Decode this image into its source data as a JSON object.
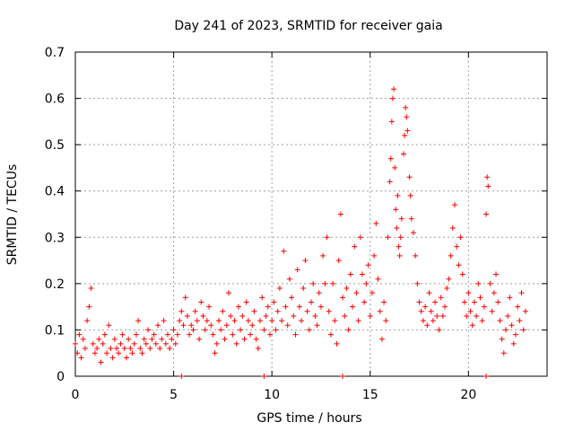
{
  "chart_data": {
    "type": "scatter",
    "title": "Day 241 of 2023, SRMTID for receiver gaia",
    "xlabel": "GPS time / hours",
    "ylabel": "SRMTID / TECUs",
    "xlim": [
      0,
      24
    ],
    "ylim": [
      0,
      0.7
    ],
    "xticks": [
      0,
      5,
      10,
      15,
      20
    ],
    "yticks": [
      0,
      0.1,
      0.2,
      0.3,
      0.4,
      0.5,
      0.6,
      0.7
    ],
    "xtick_labels": [
      "0",
      "5",
      "10",
      "15",
      "20"
    ],
    "ytick_labels": [
      "0",
      "0.1",
      "0.2",
      "0.3",
      "0.4",
      "0.5",
      "0.6",
      "0.7"
    ],
    "grid": true,
    "marker": "+",
    "series": [
      {
        "name": "SRMTID",
        "color": "#ff0000",
        "points": [
          [
            0.0,
            0.07
          ],
          [
            0.1,
            0.05
          ],
          [
            0.2,
            0.09
          ],
          [
            0.3,
            0.04
          ],
          [
            0.4,
            0.08
          ],
          [
            0.5,
            0.06
          ],
          [
            0.6,
            0.12
          ],
          [
            0.7,
            0.15
          ],
          [
            0.8,
            0.19
          ],
          [
            0.9,
            0.07
          ],
          [
            1.0,
            0.05
          ],
          [
            1.1,
            0.06
          ],
          [
            1.2,
            0.08
          ],
          [
            1.3,
            0.03
          ],
          [
            1.4,
            0.07
          ],
          [
            1.5,
            0.09
          ],
          [
            1.6,
            0.05
          ],
          [
            1.7,
            0.11
          ],
          [
            1.8,
            0.06
          ],
          [
            1.9,
            0.04
          ],
          [
            2.0,
            0.08
          ],
          [
            2.1,
            0.06
          ],
          [
            2.2,
            0.05
          ],
          [
            2.3,
            0.07
          ],
          [
            2.4,
            0.09
          ],
          [
            2.5,
            0.06
          ],
          [
            2.6,
            0.04
          ],
          [
            2.7,
            0.08
          ],
          [
            2.8,
            0.06
          ],
          [
            2.9,
            0.05
          ],
          [
            3.0,
            0.07
          ],
          [
            3.1,
            0.09
          ],
          [
            3.2,
            0.12
          ],
          [
            3.3,
            0.06
          ],
          [
            3.4,
            0.05
          ],
          [
            3.5,
            0.08
          ],
          [
            3.6,
            0.07
          ],
          [
            3.7,
            0.1
          ],
          [
            3.8,
            0.06
          ],
          [
            3.9,
            0.08
          ],
          [
            4.0,
            0.09
          ],
          [
            4.1,
            0.07
          ],
          [
            4.2,
            0.11
          ],
          [
            4.3,
            0.06
          ],
          [
            4.4,
            0.08
          ],
          [
            4.5,
            0.12
          ],
          [
            4.6,
            0.07
          ],
          [
            4.7,
            0.09
          ],
          [
            4.8,
            0.06
          ],
          [
            4.9,
            0.08
          ],
          [
            5.0,
            0.1
          ],
          [
            5.1,
            0.07
          ],
          [
            5.2,
            0.09
          ],
          [
            5.3,
            0.12
          ],
          [
            5.4,
            0.14
          ],
          [
            5.5,
            0.11
          ],
          [
            5.6,
            0.17
          ],
          [
            5.7,
            0.13
          ],
          [
            5.8,
            0.09
          ],
          [
            5.9,
            0.11
          ],
          [
            6.0,
            0.1
          ],
          [
            6.1,
            0.14
          ],
          [
            6.2,
            0.12
          ],
          [
            6.3,
            0.08
          ],
          [
            6.4,
            0.16
          ],
          [
            6.5,
            0.13
          ],
          [
            6.6,
            0.1
          ],
          [
            6.7,
            0.12
          ],
          [
            6.8,
            0.15
          ],
          [
            6.9,
            0.11
          ],
          [
            7.0,
            0.09
          ],
          [
            7.1,
            0.05
          ],
          [
            7.2,
            0.07
          ],
          [
            7.3,
            0.12
          ],
          [
            7.4,
            0.1
          ],
          [
            7.5,
            0.14
          ],
          [
            7.6,
            0.08
          ],
          [
            7.7,
            0.11
          ],
          [
            7.8,
            0.18
          ],
          [
            7.9,
            0.13
          ],
          [
            8.0,
            0.09
          ],
          [
            8.1,
            0.12
          ],
          [
            8.2,
            0.07
          ],
          [
            8.3,
            0.15
          ],
          [
            8.4,
            0.1
          ],
          [
            8.5,
            0.13
          ],
          [
            8.6,
            0.08
          ],
          [
            8.7,
            0.16
          ],
          [
            8.8,
            0.12
          ],
          [
            8.9,
            0.09
          ],
          [
            9.0,
            0.11
          ],
          [
            9.1,
            0.14
          ],
          [
            9.2,
            0.08
          ],
          [
            9.3,
            0.06
          ],
          [
            9.4,
            0.12
          ],
          [
            9.5,
            0.17
          ],
          [
            9.6,
            0.1
          ],
          [
            9.7,
            0.13
          ],
          [
            9.8,
            0.15
          ],
          [
            9.9,
            0.09
          ],
          [
            10.0,
            0.12
          ],
          [
            10.1,
            0.16
          ],
          [
            10.2,
            0.1
          ],
          [
            10.3,
            0.14
          ],
          [
            10.4,
            0.19
          ],
          [
            10.5,
            0.12
          ],
          [
            10.6,
            0.27
          ],
          [
            10.7,
            0.15
          ],
          [
            10.8,
            0.11
          ],
          [
            10.9,
            0.21
          ],
          [
            11.0,
            0.17
          ],
          [
            11.1,
            0.13
          ],
          [
            11.2,
            0.09
          ],
          [
            11.3,
            0.23
          ],
          [
            11.4,
            0.15
          ],
          [
            11.5,
            0.12
          ],
          [
            11.6,
            0.19
          ],
          [
            11.7,
            0.25
          ],
          [
            11.8,
            0.14
          ],
          [
            11.9,
            0.1
          ],
          [
            12.0,
            0.16
          ],
          [
            12.1,
            0.2
          ],
          [
            12.2,
            0.13
          ],
          [
            12.3,
            0.11
          ],
          [
            12.4,
            0.18
          ],
          [
            12.5,
            0.15
          ],
          [
            12.6,
            0.26
          ],
          [
            12.7,
            0.2
          ],
          [
            12.8,
            0.3
          ],
          [
            12.9,
            0.14
          ],
          [
            13.0,
            0.09
          ],
          [
            13.1,
            0.2
          ],
          [
            13.2,
            0.12
          ],
          [
            13.3,
            0.07
          ],
          [
            13.4,
            0.25
          ],
          [
            13.5,
            0.35
          ],
          [
            13.6,
            0.17
          ],
          [
            13.7,
            0.13
          ],
          [
            13.8,
            0.19
          ],
          [
            13.9,
            0.1
          ],
          [
            14.0,
            0.22
          ],
          [
            14.1,
            0.15
          ],
          [
            14.2,
            0.28
          ],
          [
            14.3,
            0.18
          ],
          [
            14.4,
            0.12
          ],
          [
            14.5,
            0.3
          ],
          [
            14.6,
            0.22
          ],
          [
            14.7,
            0.16
          ],
          [
            14.8,
            0.2
          ],
          [
            14.9,
            0.24
          ],
          [
            15.0,
            0.13
          ],
          [
            15.1,
            0.18
          ],
          [
            15.2,
            0.26
          ],
          [
            15.3,
            0.33
          ],
          [
            15.4,
            0.21
          ],
          [
            15.5,
            0.14
          ],
          [
            15.6,
            0.08
          ],
          [
            15.7,
            0.16
          ],
          [
            15.8,
            0.12
          ],
          [
            15.9,
            0.3
          ],
          [
            16.0,
            0.42
          ],
          [
            16.05,
            0.47
          ],
          [
            16.1,
            0.55
          ],
          [
            16.15,
            0.6
          ],
          [
            16.2,
            0.62
          ],
          [
            16.25,
            0.45
          ],
          [
            16.3,
            0.36
          ],
          [
            16.35,
            0.32
          ],
          [
            16.4,
            0.39
          ],
          [
            16.45,
            0.28
          ],
          [
            16.5,
            0.26
          ],
          [
            16.55,
            0.3
          ],
          [
            16.6,
            0.34
          ],
          [
            16.7,
            0.48
          ],
          [
            16.75,
            0.52
          ],
          [
            16.8,
            0.58
          ],
          [
            16.85,
            0.56
          ],
          [
            16.9,
            0.53
          ],
          [
            17.0,
            0.43
          ],
          [
            17.05,
            0.39
          ],
          [
            17.1,
            0.34
          ],
          [
            17.2,
            0.31
          ],
          [
            17.3,
            0.26
          ],
          [
            17.4,
            0.2
          ],
          [
            17.5,
            0.16
          ],
          [
            17.6,
            0.14
          ],
          [
            17.7,
            0.12
          ],
          [
            17.8,
            0.15
          ],
          [
            17.9,
            0.11
          ],
          [
            18.0,
            0.18
          ],
          [
            18.1,
            0.14
          ],
          [
            18.2,
            0.12
          ],
          [
            18.3,
            0.16
          ],
          [
            18.4,
            0.13
          ],
          [
            18.5,
            0.1
          ],
          [
            18.6,
            0.17
          ],
          [
            18.7,
            0.13
          ],
          [
            18.8,
            0.15
          ],
          [
            18.9,
            0.19
          ],
          [
            19.0,
            0.21
          ],
          [
            19.1,
            0.26
          ],
          [
            19.2,
            0.32
          ],
          [
            19.3,
            0.37
          ],
          [
            19.4,
            0.28
          ],
          [
            19.5,
            0.24
          ],
          [
            19.6,
            0.3
          ],
          [
            19.7,
            0.22
          ],
          [
            19.8,
            0.16
          ],
          [
            19.9,
            0.13
          ],
          [
            20.0,
            0.18
          ],
          [
            20.1,
            0.14
          ],
          [
            20.2,
            0.11
          ],
          [
            20.3,
            0.16
          ],
          [
            20.4,
            0.13
          ],
          [
            20.5,
            0.2
          ],
          [
            20.6,
            0.17
          ],
          [
            20.7,
            0.12
          ],
          [
            20.8,
            0.15
          ],
          [
            20.9,
            0.35
          ],
          [
            20.95,
            0.43
          ],
          [
            21.0,
            0.41
          ],
          [
            21.1,
            0.2
          ],
          [
            21.2,
            0.14
          ],
          [
            21.3,
            0.18
          ],
          [
            21.4,
            0.22
          ],
          [
            21.5,
            0.16
          ],
          [
            21.6,
            0.12
          ],
          [
            21.7,
            0.08
          ],
          [
            21.8,
            0.05
          ],
          [
            21.9,
            0.1
          ],
          [
            22.0,
            0.13
          ],
          [
            22.1,
            0.17
          ],
          [
            22.2,
            0.11
          ],
          [
            22.3,
            0.07
          ],
          [
            22.4,
            0.09
          ],
          [
            22.5,
            0.15
          ],
          [
            22.6,
            0.12
          ],
          [
            22.7,
            0.18
          ],
          [
            22.8,
            0.1
          ],
          [
            22.9,
            0.14
          ],
          [
            5.4,
            0.0
          ],
          [
            9.6,
            0.0
          ],
          [
            13.6,
            0.0
          ],
          [
            20.9,
            0.0
          ]
        ]
      }
    ]
  }
}
